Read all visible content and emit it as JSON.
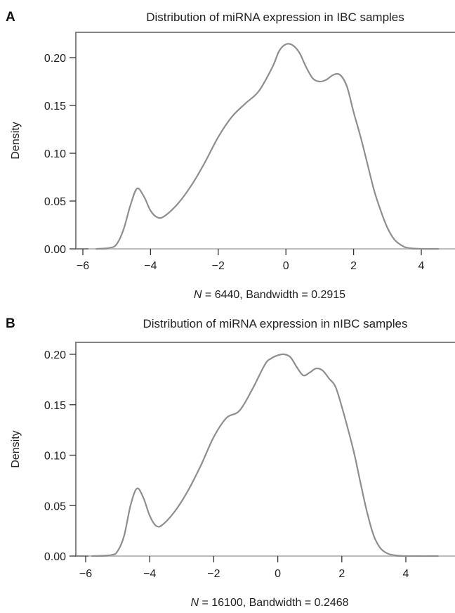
{
  "chart_data": [
    {
      "type": "line",
      "panel_label": "A",
      "title": "Distribution of miRNA expression in IBC samples",
      "xlabel_italic": "N",
      "xlabel_rest": " = 6440, Bandwidth = 0.2915",
      "ylabel": "Density",
      "xlim": [
        -6,
        4.6
      ],
      "ylim": [
        0,
        0.21
      ],
      "xticks": [
        -6,
        -4,
        -2,
        0,
        2,
        4
      ],
      "xtick_labels": [
        "−6",
        "−4",
        "−2",
        "0",
        "2",
        "4"
      ],
      "yticks": [
        0,
        0.05,
        0.1,
        0.15,
        0.2
      ],
      "ytick_labels": [
        "0.00",
        "0.05",
        "0.10",
        "0.15",
        "0.20"
      ],
      "series": [
        {
          "color": "#8e8e8e",
          "points": [
            [
              -5.6,
              0
            ],
            [
              -5.2,
              0.001
            ],
            [
              -5.0,
              0.005
            ],
            [
              -4.8,
              0.02
            ],
            [
              -4.6,
              0.045
            ],
            [
              -4.4,
              0.063
            ],
            [
              -4.2,
              0.055
            ],
            [
              -4.0,
              0.04
            ],
            [
              -3.8,
              0.033
            ],
            [
              -3.6,
              0.034
            ],
            [
              -3.2,
              0.047
            ],
            [
              -2.8,
              0.066
            ],
            [
              -2.4,
              0.09
            ],
            [
              -2.0,
              0.117
            ],
            [
              -1.6,
              0.138
            ],
            [
              -1.2,
              0.152
            ],
            [
              -0.8,
              0.165
            ],
            [
              -0.4,
              0.19
            ],
            [
              -0.2,
              0.207
            ],
            [
              0.0,
              0.214
            ],
            [
              0.2,
              0.213
            ],
            [
              0.4,
              0.205
            ],
            [
              0.6,
              0.19
            ],
            [
              0.8,
              0.178
            ],
            [
              1.0,
              0.175
            ],
            [
              1.2,
              0.177
            ],
            [
              1.4,
              0.182
            ],
            [
              1.6,
              0.182
            ],
            [
              1.8,
              0.17
            ],
            [
              2.0,
              0.143
            ],
            [
              2.2,
              0.118
            ],
            [
              2.4,
              0.09
            ],
            [
              2.6,
              0.062
            ],
            [
              2.8,
              0.04
            ],
            [
              3.0,
              0.022
            ],
            [
              3.2,
              0.01
            ],
            [
              3.4,
              0.004
            ],
            [
              3.6,
              0.001
            ],
            [
              4.0,
              0
            ],
            [
              4.5,
              0
            ]
          ]
        }
      ]
    },
    {
      "type": "line",
      "panel_label": "B",
      "title": "Distribution of miRNA expression in nIBC samples",
      "xlabel_italic": "N",
      "xlabel_rest": " = 16100, Bandwidth = 0.2468",
      "ylabel": "Density",
      "xlim": [
        -6.3,
        5.1
      ],
      "ylim": [
        0,
        0.21
      ],
      "xticks": [
        -6,
        -4,
        -2,
        0,
        2,
        4
      ],
      "xtick_labels": [
        "−6",
        "−4",
        "−2",
        "0",
        "2",
        "4"
      ],
      "yticks": [
        0,
        0.05,
        0.1,
        0.15,
        0.2
      ],
      "ytick_labels": [
        "0.00",
        "0.05",
        "0.10",
        "0.15",
        "0.20"
      ],
      "series": [
        {
          "color": "#8e8e8e",
          "points": [
            [
              -5.8,
              0
            ],
            [
              -5.2,
              0.001
            ],
            [
              -5.0,
              0.005
            ],
            [
              -4.8,
              0.02
            ],
            [
              -4.6,
              0.05
            ],
            [
              -4.4,
              0.067
            ],
            [
              -4.2,
              0.058
            ],
            [
              -4.0,
              0.04
            ],
            [
              -3.8,
              0.03
            ],
            [
              -3.6,
              0.031
            ],
            [
              -3.2,
              0.045
            ],
            [
              -2.8,
              0.065
            ],
            [
              -2.4,
              0.09
            ],
            [
              -2.0,
              0.118
            ],
            [
              -1.6,
              0.137
            ],
            [
              -1.2,
              0.144
            ],
            [
              -0.8,
              0.165
            ],
            [
              -0.4,
              0.19
            ],
            [
              -0.2,
              0.196
            ],
            [
              0.0,
              0.199
            ],
            [
              0.2,
              0.2
            ],
            [
              0.4,
              0.197
            ],
            [
              0.6,
              0.187
            ],
            [
              0.8,
              0.179
            ],
            [
              1.0,
              0.182
            ],
            [
              1.2,
              0.186
            ],
            [
              1.4,
              0.184
            ],
            [
              1.6,
              0.176
            ],
            [
              1.8,
              0.168
            ],
            [
              2.0,
              0.148
            ],
            [
              2.2,
              0.125
            ],
            [
              2.4,
              0.1
            ],
            [
              2.6,
              0.07
            ],
            [
              2.8,
              0.042
            ],
            [
              3.0,
              0.02
            ],
            [
              3.2,
              0.008
            ],
            [
              3.4,
              0.003
            ],
            [
              3.6,
              0.001
            ],
            [
              4.0,
              0
            ],
            [
              5.0,
              0
            ]
          ]
        }
      ]
    }
  ]
}
